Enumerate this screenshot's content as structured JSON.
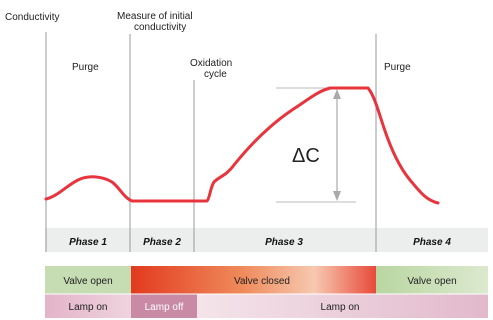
{
  "labels": {
    "y_axis": "Conductivity",
    "measure_line1": "Measure of initial",
    "measure_line2": "conductivity",
    "purge_left": "Purge",
    "oxidation_line1": "Oxidation",
    "oxidation_line2": "cycle",
    "purge_right": "Purge",
    "delta": "ΔC"
  },
  "phases": [
    "Phase 1",
    "Phase 2",
    "Phase 3",
    "Phase 4"
  ],
  "valve_row": {
    "open_left": "Valve open",
    "closed": "Valve closed",
    "open_right": "Valve open"
  },
  "lamp_row": {
    "on_left": "Lamp on",
    "off": "Lamp off",
    "on_right": "Lamp on"
  },
  "colors": {
    "curve": "#e8343c",
    "valve_open": "#c6dcb2",
    "valve_closed": "#e53a2c",
    "lamp_on": "#e7c9d6",
    "lamp_off": "#c98aa6",
    "phase_band": "#e9ecec"
  }
}
